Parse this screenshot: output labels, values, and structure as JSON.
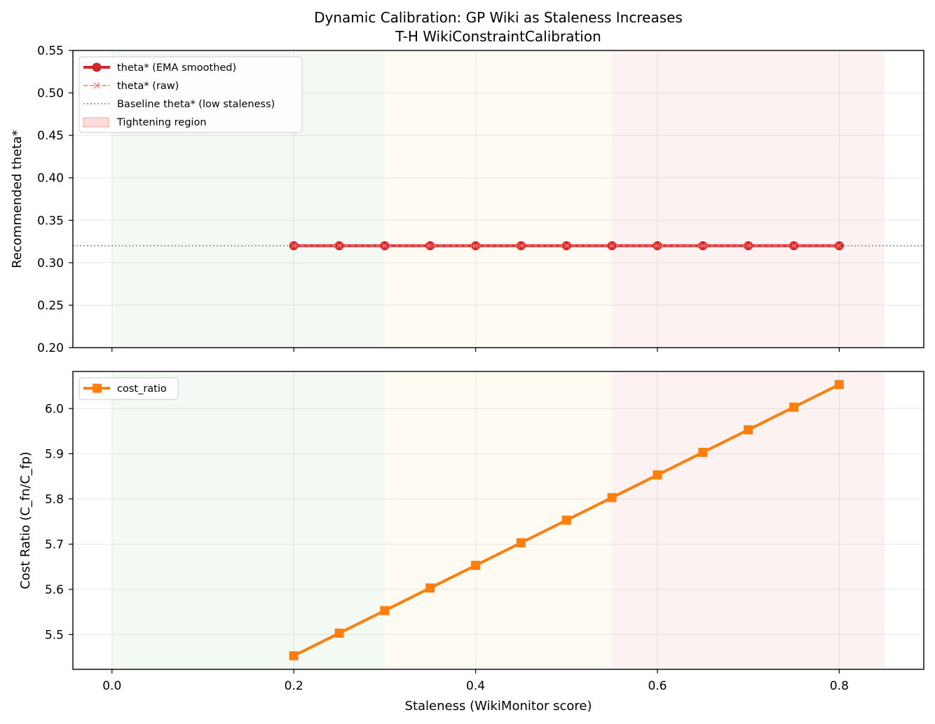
{
  "title_line1": "Dynamic Calibration: GP Wiki as Staleness Increases",
  "title_line2": "T-H WikiConstraintCalibration",
  "chart_data": [
    {
      "type": "line",
      "ylabel": "Recommended theta*",
      "xlim": [
        -0.043,
        0.893
      ],
      "ylim": [
        0.2,
        0.55
      ],
      "xticks": [
        0.0,
        0.2,
        0.4,
        0.6,
        0.8
      ],
      "yticks": [
        0.2,
        0.25,
        0.3,
        0.35,
        0.4,
        0.45,
        0.5,
        0.55
      ],
      "ytick_labels": [
        "0.20",
        "0.25",
        "0.30",
        "0.35",
        "0.40",
        "0.45",
        "0.50",
        "0.55"
      ],
      "grid": true,
      "legend_position": "upper-left",
      "regions": [
        {
          "x0": 0.0,
          "x1": 0.3,
          "color": "#2ca02c",
          "opacity": 0.06
        },
        {
          "x0": 0.3,
          "x1": 0.55,
          "color": "#ffb000",
          "opacity": 0.05
        },
        {
          "x0": 0.55,
          "x1": 0.85,
          "color": "#e8474a",
          "opacity": 0.07
        }
      ],
      "baseline": {
        "name": "Baseline theta* (low staleness)",
        "value": 0.32,
        "color": "#808080"
      },
      "region_legend": {
        "name": "Tightening region",
        "color": "#f8c6c6"
      },
      "series": [
        {
          "name": "theta* (EMA smoothed)",
          "color": "#d62728",
          "marker": "circle",
          "x": [
            0.2,
            0.25,
            0.3,
            0.35,
            0.4,
            0.45,
            0.5,
            0.55,
            0.6,
            0.65,
            0.7,
            0.75,
            0.8
          ],
          "values": [
            0.32,
            0.32,
            0.32,
            0.32,
            0.32,
            0.32,
            0.32,
            0.32,
            0.32,
            0.32,
            0.32,
            0.32,
            0.32
          ]
        },
        {
          "name": "theta* (raw)",
          "color": "#e8827a",
          "marker": "x",
          "x": [
            0.2,
            0.25,
            0.3,
            0.35,
            0.4,
            0.45,
            0.5,
            0.55,
            0.6,
            0.65,
            0.7,
            0.75,
            0.8
          ],
          "values": [
            0.32,
            0.32,
            0.32,
            0.32,
            0.32,
            0.32,
            0.32,
            0.32,
            0.32,
            0.32,
            0.32,
            0.32,
            0.32
          ]
        }
      ]
    },
    {
      "type": "line",
      "xlabel": "Staleness (WikiMonitor score)",
      "ylabel": "Cost Ratio (C_fn/C_fp)",
      "xlim": [
        -0.043,
        0.893
      ],
      "ylim": [
        5.423,
        6.082
      ],
      "xticks": [
        0.0,
        0.2,
        0.4,
        0.6,
        0.8
      ],
      "xtick_labels": [
        "0.0",
        "0.2",
        "0.4",
        "0.6",
        "0.8"
      ],
      "yticks": [
        5.5,
        5.6,
        5.7,
        5.8,
        5.9,
        6.0
      ],
      "ytick_labels": [
        "5.5",
        "5.6",
        "5.7",
        "5.8",
        "5.9",
        "6.0"
      ],
      "grid": true,
      "legend_position": "upper-left",
      "regions": [
        {
          "x0": 0.0,
          "x1": 0.3,
          "color": "#2ca02c",
          "opacity": 0.06
        },
        {
          "x0": 0.3,
          "x1": 0.55,
          "color": "#ffb000",
          "opacity": 0.05
        },
        {
          "x0": 0.55,
          "x1": 0.85,
          "color": "#e8474a",
          "opacity": 0.07
        }
      ],
      "series": [
        {
          "name": "cost_ratio",
          "color": "#ff7f0e",
          "marker": "square",
          "x": [
            0.2,
            0.25,
            0.3,
            0.35,
            0.4,
            0.45,
            0.5,
            0.55,
            0.6,
            0.65,
            0.7,
            0.75,
            0.8
          ],
          "values": [
            5.453,
            5.503,
            5.553,
            5.603,
            5.653,
            5.703,
            5.753,
            5.803,
            5.853,
            5.903,
            5.953,
            6.003,
            6.053
          ]
        }
      ]
    }
  ]
}
